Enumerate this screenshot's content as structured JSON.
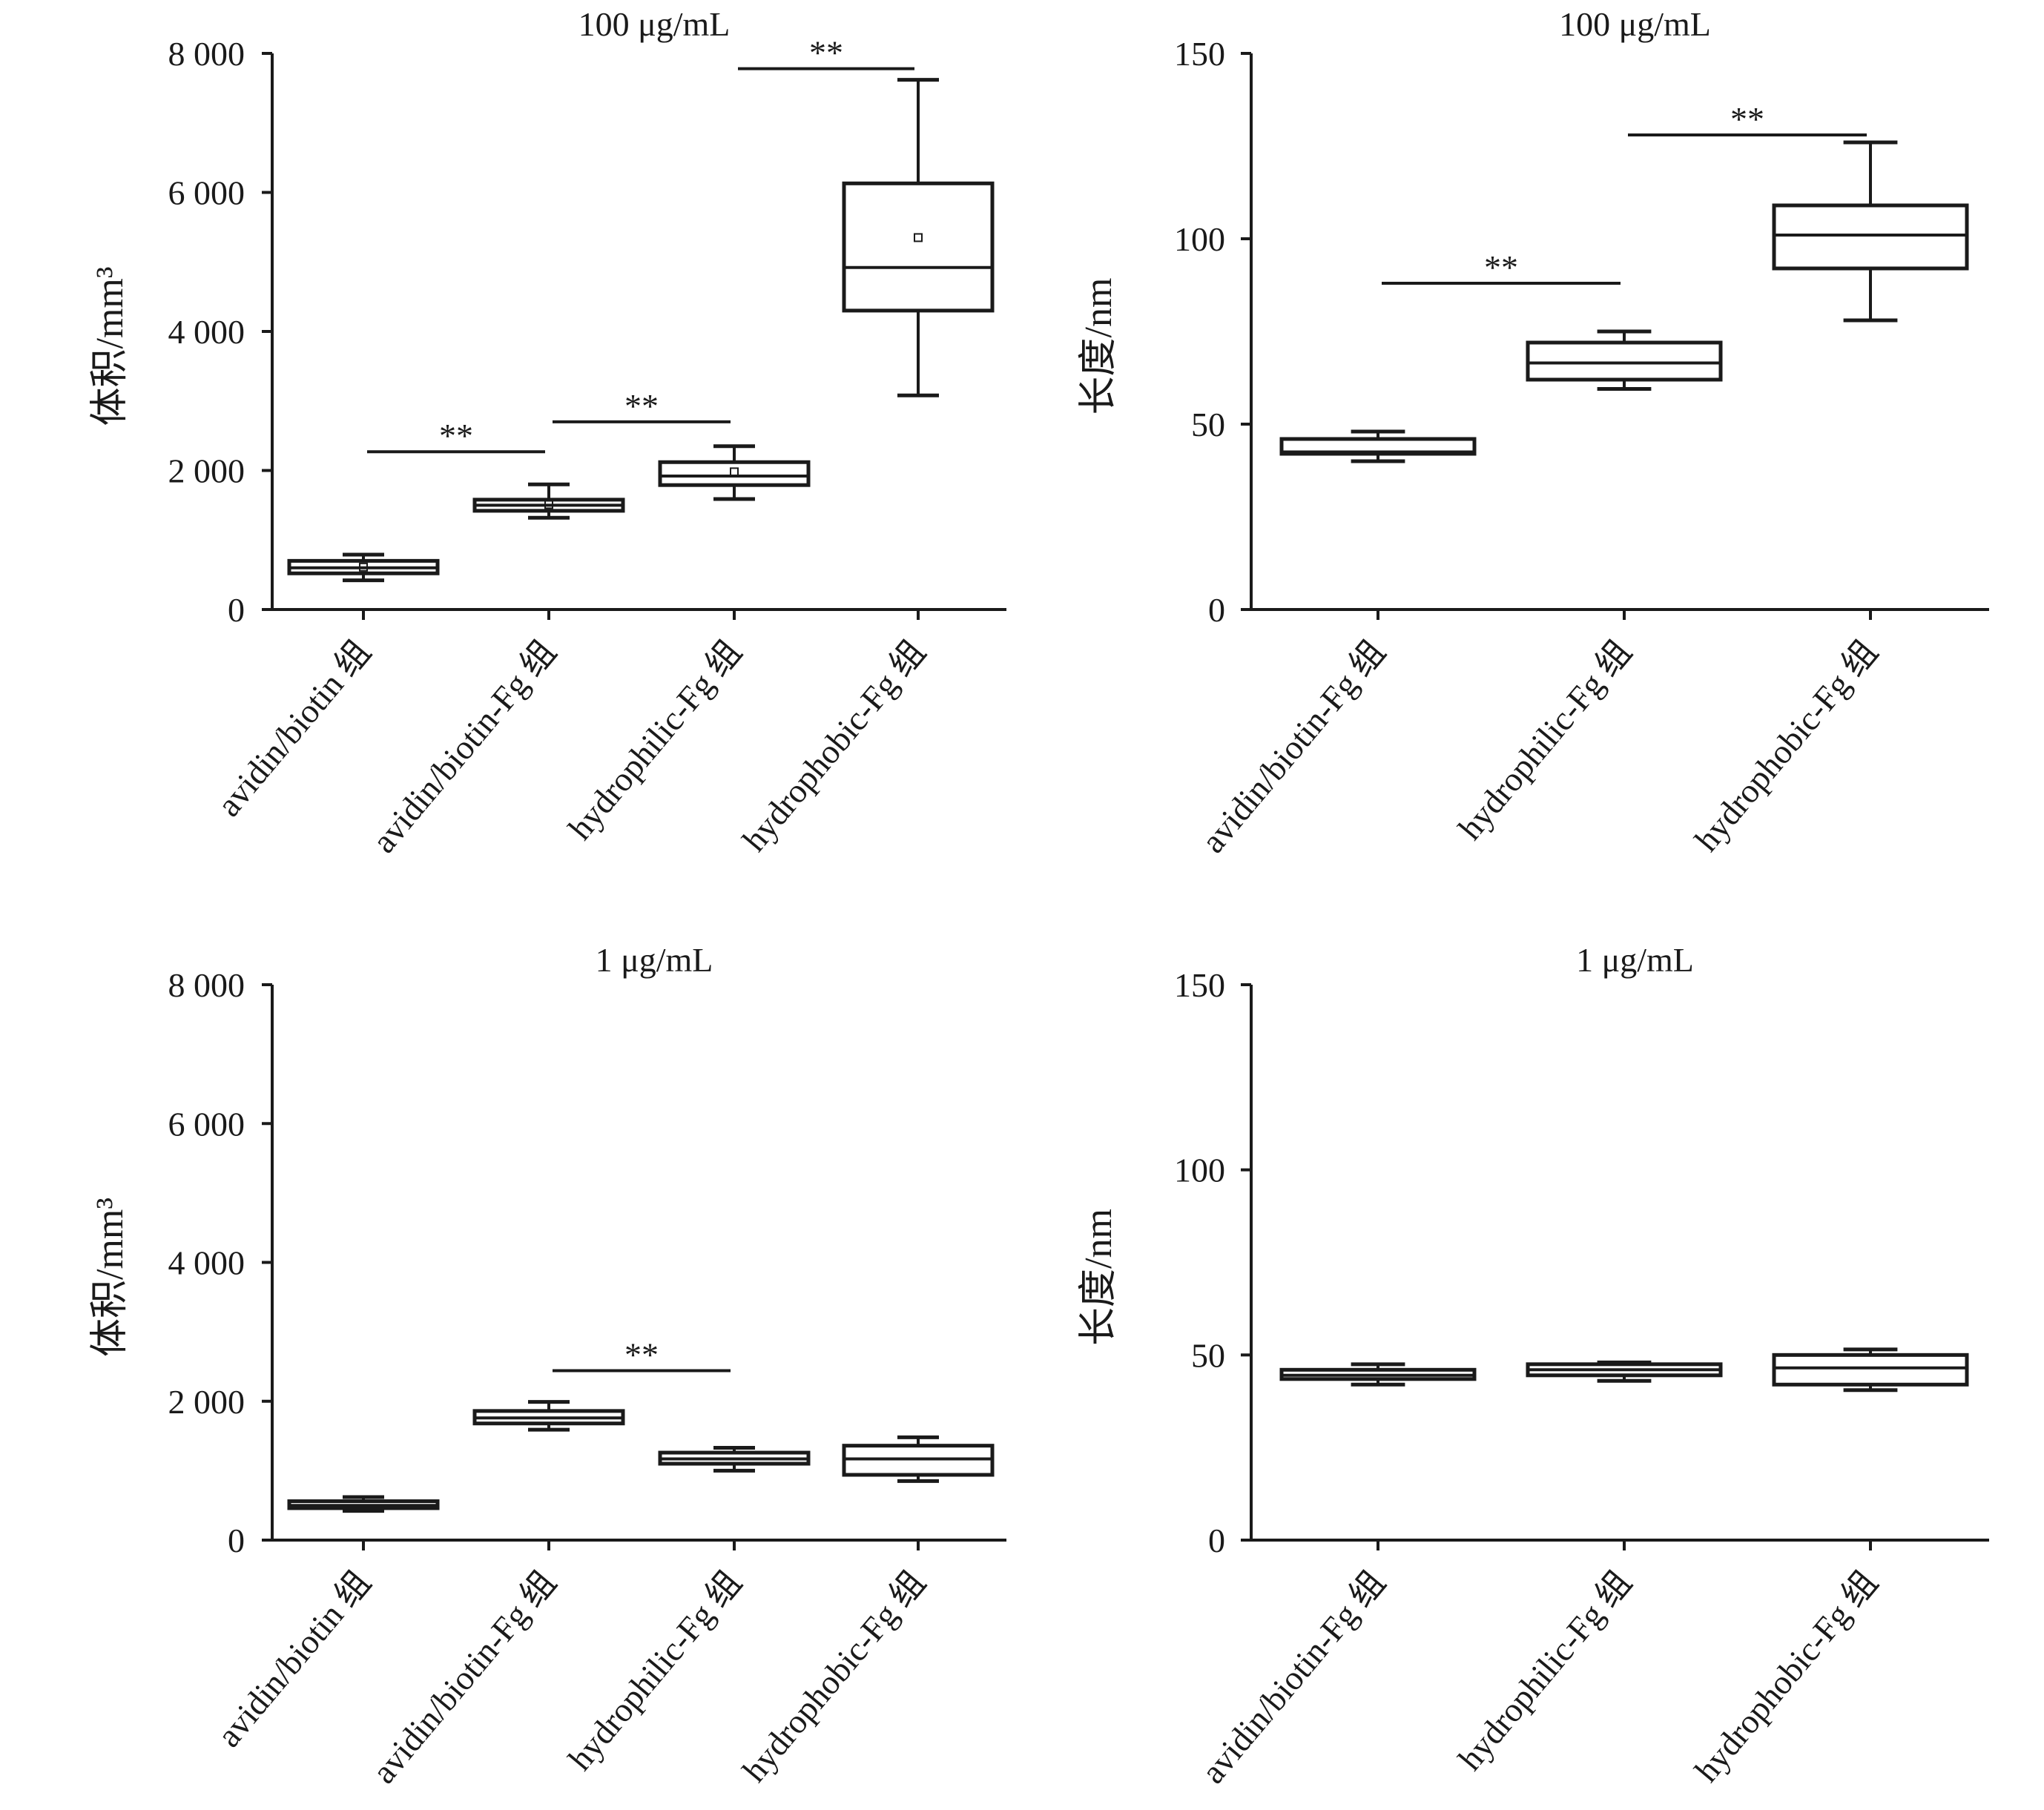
{
  "figure": {
    "colors": {
      "ink": "#1a1a1a",
      "box_fill": "#ffffff",
      "background": "#ffffff"
    }
  },
  "chart_data": [
    {
      "type": "box",
      "title": "100 μg/mL",
      "ylabel": "体积/mm³",
      "ylim": [
        0,
        8000
      ],
      "yticks": [
        0,
        2000,
        4000,
        6000,
        8000
      ],
      "ytick_labels": [
        "0",
        "2 000",
        "4 000",
        "6 000",
        "8 000"
      ],
      "categories": [
        "avidin/biotin 组",
        "avidin/biotin-Fg 组",
        "hydrophilic-Fg 组",
        "hydrophobic-Fg 组"
      ],
      "boxes": [
        {
          "min": 420,
          "q1": 520,
          "median": 600,
          "q3": 700,
          "max": 790,
          "mean": 610
        },
        {
          "min": 1320,
          "q1": 1420,
          "median": 1500,
          "q3": 1580,
          "max": 1800,
          "mean": 1510
        },
        {
          "min": 1590,
          "q1": 1790,
          "median": 1920,
          "q3": 2120,
          "max": 2350,
          "mean": 1980
        },
        {
          "min": 3080,
          "q1": 4300,
          "median": 4920,
          "q3": 6130,
          "max": 7620,
          "mean": 5350
        }
      ],
      "annotations": [
        {
          "text": "**",
          "from": 0,
          "to": 1,
          "y": 2270
        },
        {
          "text": "**",
          "from": 1,
          "to": 2,
          "y": 2700
        },
        {
          "text": "**",
          "from": 2,
          "to": 3,
          "y": 7780
        }
      ],
      "grid": false
    },
    {
      "type": "box",
      "title": "100 μg/mL",
      "ylabel": "长度/nm",
      "ylim": [
        0,
        150
      ],
      "yticks": [
        0,
        50,
        100,
        150
      ],
      "ytick_labels": [
        "0",
        "50",
        "100",
        "150"
      ],
      "categories": [
        "avidin/biotin-Fg 组",
        "hydrophilic-Fg 组",
        "hydrophobic-Fg 组"
      ],
      "boxes": [
        {
          "min": 40,
          "q1": 42,
          "median": 42.5,
          "q3": 46,
          "max": 48
        },
        {
          "min": 59.5,
          "q1": 62,
          "median": 66.5,
          "q3": 72,
          "max": 75
        },
        {
          "min": 78,
          "q1": 92,
          "median": 101,
          "q3": 109,
          "max": 126
        }
      ],
      "annotations": [
        {
          "text": "**",
          "from": 0,
          "to": 1,
          "y": 88
        },
        {
          "text": "**",
          "from": 1,
          "to": 2,
          "y": 128
        }
      ],
      "grid": false
    },
    {
      "type": "box",
      "title": "1 μg/mL",
      "ylabel": "体积/mm³",
      "ylim": [
        0,
        8000
      ],
      "yticks": [
        0,
        2000,
        4000,
        6000,
        8000
      ],
      "ytick_labels": [
        "0",
        "2 000",
        "4 000",
        "6 000",
        "8 000"
      ],
      "categories": [
        "avidin/biotin 组",
        "avidin/biotin-Fg 组",
        "hydrophilic-Fg 组",
        "hydrophobic-Fg 组"
      ],
      "boxes": [
        {
          "min": 420,
          "q1": 460,
          "median": 500,
          "q3": 560,
          "max": 620
        },
        {
          "min": 1590,
          "q1": 1680,
          "median": 1760,
          "q3": 1860,
          "max": 1990
        },
        {
          "min": 1000,
          "q1": 1100,
          "median": 1170,
          "q3": 1260,
          "max": 1330
        },
        {
          "min": 850,
          "q1": 940,
          "median": 1170,
          "q3": 1360,
          "max": 1480
        }
      ],
      "annotations": [
        {
          "text": "**",
          "from": 1,
          "to": 2,
          "y": 2440
        }
      ],
      "grid": false
    },
    {
      "type": "box",
      "title": "1 μg/mL",
      "ylabel": "长度/nm",
      "ylim": [
        0,
        150
      ],
      "yticks": [
        0,
        50,
        100,
        150
      ],
      "ytick_labels": [
        "0",
        "50",
        "100",
        "150"
      ],
      "categories": [
        "avidin/biotin-Fg 组",
        "hydrophilic-Fg 组",
        "hydrophobic-Fg 组"
      ],
      "boxes": [
        {
          "min": 42,
          "q1": 43.5,
          "median": 44.5,
          "q3": 46,
          "max": 47.5
        },
        {
          "min": 43,
          "q1": 44.5,
          "median": 46,
          "q3": 47.5,
          "max": 48
        },
        {
          "min": 40.5,
          "q1": 42,
          "median": 46.5,
          "q3": 50,
          "max": 51.5
        }
      ],
      "annotations": [],
      "grid": false
    }
  ]
}
